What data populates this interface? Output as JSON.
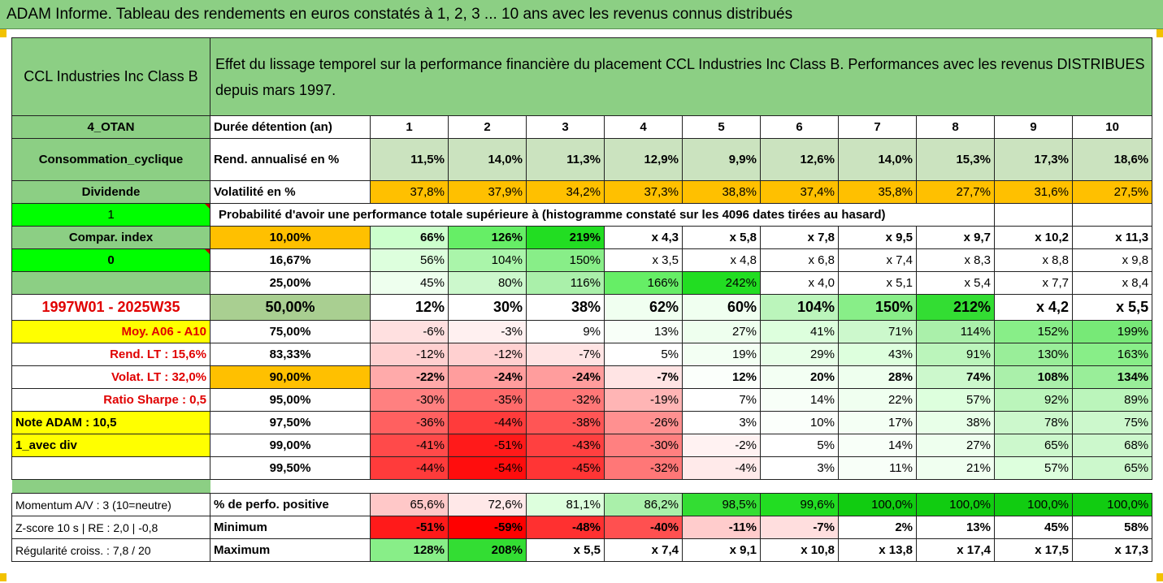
{
  "title": "ADAM Informe. Tableau des rendements en euros constatés à 1, 2, 3 ... 10 ans avec les revenus connus distribués",
  "colors": {
    "green_header": "#8ccf84",
    "green_row": "#cbe3bf",
    "orange": "#ffc000",
    "yellow": "#ffff00",
    "bright_green": "#00ff00",
    "gray_green": "#a9cf91"
  },
  "header": {
    "name": "CCL Industries Inc Class B",
    "description": "Effet du lissage temporel sur la performance financière du placement CCL Industries Inc Class B. Performances avec les revenus DISTRIBUES depuis mars 1997."
  },
  "rows": [
    {
      "label": "4_OTAN",
      "label_bg": "#8ccf84",
      "label_bold": true,
      "label_align": "c",
      "mid": "Durée détention (an)",
      "mid_align": "l",
      "mid_bg": "#ffffff",
      "val_bold": true,
      "val_align": "c",
      "values": [
        "1",
        "2",
        "3",
        "4",
        "5",
        "6",
        "7",
        "8",
        "9",
        "10"
      ],
      "bgs": [
        "#fff",
        "#fff",
        "#fff",
        "#fff",
        "#fff",
        "#fff",
        "#fff",
        "#fff",
        "#fff",
        "#fff"
      ]
    },
    {
      "label": "Consommation_cyclique",
      "label_bg": "#8ccf84",
      "label_bold": true,
      "label_align": "c",
      "tall": true,
      "mid": "Rend. annualisé en %",
      "mid_align": "l",
      "mid_bg": "#ffffff",
      "val_bold": true,
      "values": [
        "11,5%",
        "14,0%",
        "11,3%",
        "12,9%",
        "9,9%",
        "12,6%",
        "14,0%",
        "15,3%",
        "17,3%",
        "18,6%"
      ],
      "bgs": [
        "#cbe3bf",
        "#cbe3bf",
        "#cbe3bf",
        "#cbe3bf",
        "#cbe3bf",
        "#cbe3bf",
        "#cbe3bf",
        "#cbe3bf",
        "#cbe3bf",
        "#cbe3bf"
      ]
    },
    {
      "label": "Dividende",
      "label_bg": "#8ccf84",
      "label_bold": true,
      "label_align": "c",
      "mid": "Volatilité en %",
      "mid_align": "l",
      "mid_bg": "#ffffff",
      "val_bold": false,
      "values": [
        "37,8%",
        "37,9%",
        "34,2%",
        "37,3%",
        "38,8%",
        "37,4%",
        "35,8%",
        "27,7%",
        "31,6%",
        "27,5%"
      ],
      "bgs": [
        "#ffc000",
        "#ffc000",
        "#ffc000",
        "#ffc000",
        "#ffc000",
        "#ffc000",
        "#ffc000",
        "#ffc000",
        "#ffc000",
        "#ffc000"
      ]
    },
    {
      "label": "1",
      "label_bg": "#00ff00",
      "label_bold": false,
      "label_align": "c",
      "label_tri": true,
      "span": true,
      "mid": "Probabilité d'avoir une performance totale supérieure à (histogramme constaté sur les 4096 dates tirées au hasard)",
      "values": [
        "",
        ""
      ],
      "bgs": [
        "#fff",
        "#fff"
      ]
    },
    {
      "label": "Compar. index",
      "label_bg": "#8ccf84",
      "label_bold": true,
      "label_align": "c",
      "mid": "10,00%",
      "mid_align": "c",
      "mid_bg": "#ffc000",
      "val_bold": true,
      "values": [
        "66%",
        "126%",
        "219%",
        "x 4,3",
        "x 5,8",
        "x 7,8",
        "x 9,5",
        "x 9,7",
        "x 10,2",
        "x 11,3"
      ],
      "bgs": [
        "#ccffcc",
        "#66ee66",
        "#22dd22",
        "#fff",
        "#fff",
        "#fff",
        "#fff",
        "#fff",
        "#fff",
        "#fff"
      ]
    },
    {
      "label": "0",
      "label_bg": "#00ff00",
      "label_bold": true,
      "label_align": "c",
      "label_tri": true,
      "mid": "16,67%",
      "mid_align": "c",
      "mid_bg": "#ffffff",
      "val_bold": false,
      "values": [
        "56%",
        "104%",
        "150%",
        "x 3,5",
        "x 4,8",
        "x 6,8",
        "x 7,4",
        "x 8,3",
        "x 8,8",
        "x 9,8"
      ],
      "bgs": [
        "#ddffdd",
        "#aaf5aa",
        "#88ee88",
        "#fff",
        "#fff",
        "#fff",
        "#fff",
        "#fff",
        "#fff",
        "#fff"
      ]
    },
    {
      "label": "",
      "label_bg": "#8ccf84",
      "label_bold": false,
      "label_align": "c",
      "mid": "25,00%",
      "mid_align": "c",
      "mid_bg": "#ffffff",
      "val_bold": false,
      "values": [
        "45%",
        "80%",
        "116%",
        "166%",
        "242%",
        "x 4,0",
        "x 5,1",
        "x 5,4",
        "x 7,7",
        "x 8,4"
      ],
      "bgs": [
        "#eeffee",
        "#ccf8cc",
        "#aaf0aa",
        "#66ee66",
        "#22dd22",
        "#fff",
        "#fff",
        "#fff",
        "#fff",
        "#fff"
      ]
    },
    {
      "label": "1997W01 - 2025W35",
      "label_bg": "#ffffff",
      "label_bold": true,
      "label_align": "c",
      "label_color": "#e00000",
      "big": true,
      "mid": "50,00%",
      "mid_align": "c",
      "mid_bg": "#a9cf91",
      "val_bold": true,
      "values": [
        "12%",
        "30%",
        "38%",
        "62%",
        "60%",
        "104%",
        "150%",
        "212%",
        "x 4,2",
        "x 5,5"
      ],
      "bgs": [
        "#fff",
        "#fff",
        "#fff",
        "#f0fff0",
        "#f0fff0",
        "#bbf5bb",
        "#88ee88",
        "#33dd33",
        "#fff",
        "#fff"
      ]
    },
    {
      "label": "Moy. A06 - A10",
      "label_bg": "#ffff00",
      "label_bold": true,
      "label_align": "r",
      "label_color": "#e00000",
      "mid": "75,00%",
      "mid_align": "c",
      "mid_bg": "#ffffff",
      "val_bold": false,
      "values": [
        "-6%",
        "-3%",
        "9%",
        "13%",
        "27%",
        "41%",
        "71%",
        "114%",
        "152%",
        "199%"
      ],
      "bgs": [
        "#ffe0e0",
        "#fff0f0",
        "#ffffff",
        "#f8fff8",
        "#eeffee",
        "#ddffdd",
        "#ccf8cc",
        "#aaf0aa",
        "#88ee88",
        "#77e977"
      ]
    },
    {
      "label": "Rend. LT :   15,6%",
      "label_bg": "#ffffff",
      "label_bold": true,
      "label_align": "r",
      "label_color": "#e00000",
      "mid": "83,33%",
      "mid_align": "c",
      "mid_bg": "#ffffff",
      "val_bold": false,
      "values": [
        "-12%",
        "-12%",
        "-7%",
        "5%",
        "19%",
        "29%",
        "43%",
        "91%",
        "130%",
        "163%"
      ],
      "bgs": [
        "#ffd0d0",
        "#ffd0d0",
        "#ffe4e4",
        "#ffffff",
        "#f3fff3",
        "#e8ffe8",
        "#ddffdd",
        "#bbf5bb",
        "#99ee99",
        "#88ee88"
      ]
    },
    {
      "label": "Volat. LT :   32,0%",
      "label_bg": "#ffffff",
      "label_bold": true,
      "label_align": "r",
      "label_color": "#e00000",
      "mid": "90,00%",
      "mid_align": "c",
      "mid_bg": "#ffc000",
      "val_bold": true,
      "values": [
        "-22%",
        "-24%",
        "-24%",
        "-7%",
        "12%",
        "20%",
        "28%",
        "74%",
        "108%",
        "134%"
      ],
      "bgs": [
        "#ffaaaa",
        "#ff9d9d",
        "#ff9d9d",
        "#ffe4e4",
        "#fbfffb",
        "#f3fff3",
        "#eeffee",
        "#ccf8cc",
        "#aaf0aa",
        "#99ee99"
      ]
    },
    {
      "label": "Ratio Sharpe :    0,5",
      "label_bg": "#ffffff",
      "label_bold": true,
      "label_align": "r",
      "label_color": "#e00000",
      "mid": "95,00%",
      "mid_align": "c",
      "mid_bg": "#ffffff",
      "val_bold": false,
      "values": [
        "-30%",
        "-35%",
        "-32%",
        "-19%",
        "7%",
        "14%",
        "22%",
        "57%",
        "92%",
        "89%"
      ],
      "bgs": [
        "#ff8080",
        "#ff6a6a",
        "#ff7777",
        "#ffb5b5",
        "#ffffff",
        "#f8fff8",
        "#f0fff0",
        "#ddffdd",
        "#bbf5bb",
        "#bbf5bb"
      ]
    },
    {
      "label": "Note ADAM : 10,5",
      "label_bg": "#ffff00",
      "label_bold": true,
      "label_align": "l",
      "mid": "97,50%",
      "mid_align": "c",
      "mid_bg": "#ffffff",
      "val_bold": false,
      "values": [
        "-36%",
        "-44%",
        "-38%",
        "-26%",
        "3%",
        "10%",
        "17%",
        "38%",
        "78%",
        "75%"
      ],
      "bgs": [
        "#ff6060",
        "#ff3b3b",
        "#ff5555",
        "#ff9090",
        "#ffffff",
        "#fbfffb",
        "#f4fff4",
        "#e8ffe8",
        "#ccf8cc",
        "#ccf8cc"
      ]
    },
    {
      "label": "1_avec div",
      "label_bg": "#ffff00",
      "label_bold": true,
      "label_align": "l",
      "mid": "99,00%",
      "mid_align": "c",
      "mid_bg": "#ffffff",
      "val_bold": false,
      "values": [
        "-41%",
        "-51%",
        "-43%",
        "-30%",
        "-2%",
        "5%",
        "14%",
        "27%",
        "65%",
        "68%"
      ],
      "bgs": [
        "#ff4a4a",
        "#ff1a1a",
        "#ff4040",
        "#ff8080",
        "#fff2f2",
        "#ffffff",
        "#f8fff8",
        "#eeffee",
        "#ccf8cc",
        "#ccf8cc"
      ]
    },
    {
      "label": "",
      "label_bg": "#ffffff",
      "label_bold": false,
      "label_align": "l",
      "mid": "99,50%",
      "mid_align": "c",
      "mid_bg": "#ffffff",
      "val_bold": false,
      "values": [
        "-44%",
        "-54%",
        "-45%",
        "-32%",
        "-4%",
        "3%",
        "11%",
        "21%",
        "57%",
        "65%"
      ],
      "bgs": [
        "#ff3b3b",
        "#ff0d0d",
        "#ff3535",
        "#ff7777",
        "#ffeaea",
        "#ffffff",
        "#f8fff8",
        "#f0fff0",
        "#ddffdd",
        "#ccf8cc"
      ]
    }
  ],
  "footer_rows": [
    {
      "label": "Momentum A/V : 3 (10=neutre)",
      "mid": "% de perfo. positive",
      "val_bold": false,
      "values": [
        "65,6%",
        "72,6%",
        "81,1%",
        "86,2%",
        "98,5%",
        "99,6%",
        "100,0%",
        "100,0%",
        "100,0%",
        "100,0%"
      ],
      "bgs": [
        "#ffc8c8",
        "#ffe8e8",
        "#ddffdd",
        "#aaf0aa",
        "#33dd33",
        "#22dd22",
        "#11cc11",
        "#11cc11",
        "#11cc11",
        "#11cc11"
      ]
    },
    {
      "label": "Z-score 10 s  |  RE : 2,0  |  -0,8",
      "mid": "Minimum",
      "val_bold": true,
      "values": [
        "-51%",
        "-59%",
        "-48%",
        "-40%",
        "-11%",
        "-7%",
        "2%",
        "13%",
        "45%",
        "58%"
      ],
      "bgs": [
        "#ff1a1a",
        "#ff0000",
        "#ff3030",
        "#ff5050",
        "#ffcccc",
        "#ffdede",
        "#ffffff",
        "#ffffff",
        "#ffffff",
        "#ffffff"
      ]
    },
    {
      "label": "Régularité croiss. : 7,8 / 20",
      "mid": "Maximum",
      "val_bold": true,
      "values": [
        "128%",
        "208%",
        "x 5,5",
        "x 7,4",
        "x 9,1",
        "x 10,8",
        "x 13,8",
        "x 17,4",
        "x 17,5",
        "x 17,3"
      ],
      "bgs": [
        "#88ee88",
        "#33dd33",
        "#ffffff",
        "#ffffff",
        "#ffffff",
        "#ffffff",
        "#ffffff",
        "#ffffff",
        "#ffffff",
        "#ffffff"
      ]
    }
  ]
}
